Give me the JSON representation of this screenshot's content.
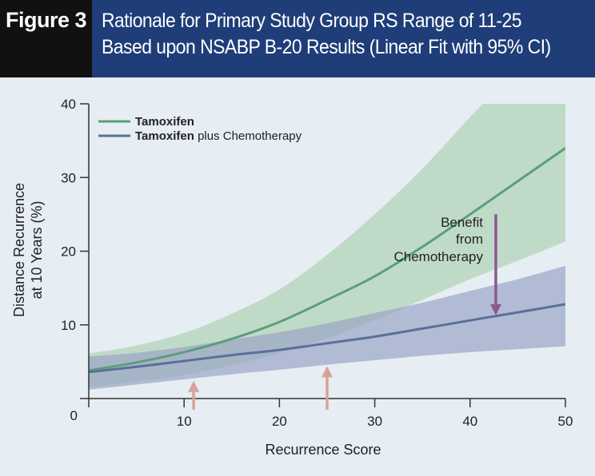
{
  "figure": {
    "label": "Figure 3",
    "title_line1": "Rationale for Primary Study Group RS Range of 11-25",
    "title_line2": "Based upon NSABP B-20 Results (Linear Fit with 95% CI)"
  },
  "colors": {
    "header_bg": "#1f3d78",
    "label_bg": "#111111",
    "plot_bg": "#e6edf3",
    "tamoxifen_line": "#5a9e7a",
    "tamoxifen_band": "#b9d6c0",
    "chemo_line": "#5a6f9a",
    "chemo_band": "#9aa5c4",
    "benefit_arrow": "#8a5a92",
    "rs_arrow": "#d9a09a"
  },
  "chart_data": {
    "type": "line",
    "title": "Rationale for Primary Study Group RS Range of 11-25 Based upon NSABP B-20 Results (Linear Fit with 95% CI)",
    "xlabel": "Recurrence Score",
    "ylabel_line1": "Distance Recurrence",
    "ylabel_line2": "at 10 Years (%)",
    "xlim": [
      0,
      50
    ],
    "ylim": [
      0,
      40
    ],
    "x_ticks": [
      0,
      10,
      20,
      30,
      40,
      50
    ],
    "x_tick_labels": [
      "10",
      "20",
      "30",
      "40",
      "50"
    ],
    "y_ticks": [
      0,
      10,
      20,
      30,
      40
    ],
    "y_tick_labels": [
      "0",
      "10",
      "20",
      "30",
      "40"
    ],
    "grid": false,
    "legend": {
      "position": "top-left",
      "tamoxifen": "Tamoxifen",
      "chemo_bold": "Tamoxifen",
      "chemo_rest": " plus Chemotherapy"
    },
    "x": [
      0,
      5,
      10,
      15,
      20,
      25,
      30,
      35,
      40,
      45,
      50
    ],
    "series": [
      {
        "name": "Tamoxifen",
        "values": [
          3.8,
          4.9,
          6.3,
          8.1,
          10.4,
          13.4,
          16.6,
          20.6,
          25.0,
          29.5,
          34.0
        ],
        "lower": [
          1.5,
          2.3,
          3.2,
          4.5,
          6.2,
          8.2,
          10.6,
          13.4,
          16.2,
          18.7,
          21.3
        ],
        "upper": [
          6.1,
          7.2,
          8.9,
          11.5,
          14.8,
          19.5,
          25.0,
          31.2,
          38.2,
          45.0,
          52.0
        ]
      },
      {
        "name": "Tamoxifen plus Chemotherapy",
        "values": [
          3.6,
          4.3,
          5.1,
          5.9,
          6.6,
          7.5,
          8.4,
          9.5,
          10.6,
          11.7,
          12.8
        ],
        "lower": [
          1.2,
          1.9,
          2.6,
          3.3,
          3.9,
          4.6,
          5.2,
          5.8,
          6.3,
          6.7,
          7.1
        ],
        "upper": [
          5.7,
          6.2,
          7.0,
          8.0,
          9.0,
          10.2,
          11.6,
          13.0,
          14.6,
          16.2,
          18.0
        ]
      }
    ],
    "annotations": {
      "benefit_line1": "Benefit",
      "benefit_line2": "from",
      "benefit_line3": "Chemotherapy",
      "benefit_arrow_x": 42.7,
      "benefit_arrow_from_y": 25.0,
      "benefit_arrow_to_y": 11.3,
      "rs_arrow_1_x": 11,
      "rs_arrow_2_x": 25,
      "rs_arrow_from_y": -1.5,
      "rs_arrow_to_y": 4.4,
      "rs_arrow_1_to_y": 2.4
    }
  }
}
